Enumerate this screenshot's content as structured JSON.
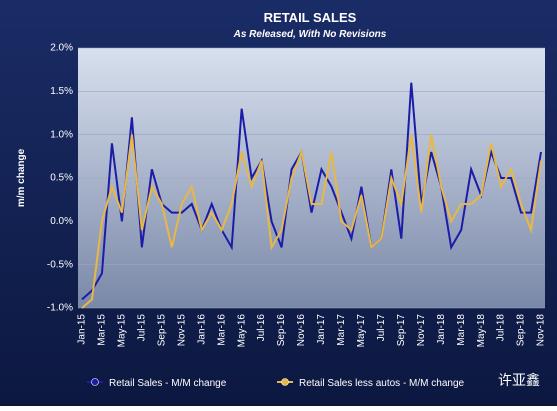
{
  "chart_data": {
    "type": "line",
    "title": "RETAIL SALES",
    "subtitle": "As Released, With No Revisions",
    "y_label": "m/m change",
    "categories": [
      "Jan-15",
      null,
      "Mar-15",
      null,
      "May-15",
      null,
      "Jul-15",
      null,
      "Sep-15",
      null,
      "Nov-15",
      null,
      "Jan-16",
      null,
      "Mar-16",
      null,
      "May-16",
      null,
      "Jul-16",
      null,
      "Sep-16",
      null,
      "Nov-16",
      null,
      "Jan-17",
      null,
      "Mar-17",
      null,
      "May-17",
      null,
      "Jul-17",
      null,
      "Sep-17",
      null,
      "Nov-17",
      null,
      "Jan-18",
      null,
      "Mar-18",
      null,
      "May-18",
      null,
      "Jul-18",
      null,
      "Sep-18",
      null,
      "Nov-18"
    ],
    "series": [
      {
        "name": "Retail Sales - M/M change",
        "color": "#1c1ca8",
        "values": [
          -0.9,
          -0.8,
          -0.6,
          0.9,
          0.0,
          1.2,
          -0.3,
          0.6,
          0.2,
          0.1,
          0.1,
          0.2,
          -0.1,
          0.2,
          -0.1,
          -0.3,
          1.3,
          0.5,
          0.7,
          0.0,
          -0.3,
          0.6,
          0.8,
          0.1,
          0.6,
          0.4,
          0.1,
          -0.2,
          0.4,
          -0.3,
          -0.2,
          0.6,
          -0.2,
          1.6,
          0.2,
          0.8,
          0.4,
          -0.3,
          -0.1,
          0.6,
          0.3,
          0.8,
          0.5,
          0.5,
          0.1,
          0.1,
          0.8
        ]
      },
      {
        "name": "Retail Sales less autos - M/M change",
        "color": "#e8b844",
        "values": [
          -1.0,
          -0.9,
          0.0,
          0.4,
          0.1,
          1.0,
          -0.1,
          0.4,
          0.2,
          -0.3,
          0.2,
          0.4,
          -0.1,
          0.1,
          -0.1,
          0.2,
          0.8,
          0.4,
          0.7,
          -0.3,
          -0.1,
          0.5,
          0.8,
          0.2,
          0.2,
          0.8,
          0.0,
          -0.1,
          0.3,
          -0.3,
          -0.2,
          0.5,
          0.2,
          1.0,
          0.1,
          1.0,
          0.4,
          0.0,
          0.2,
          0.2,
          0.3,
          0.9,
          0.4,
          0.6,
          0.2,
          -0.1,
          0.7
        ]
      }
    ],
    "ylim": [
      -1.0,
      2.0
    ],
    "yticks": [
      {
        "value": -1.0,
        "label": "-1.0%"
      },
      {
        "value": -0.5,
        "label": "-0.5%"
      },
      {
        "value": 0.0,
        "label": "0.0%"
      },
      {
        "value": 0.5,
        "label": "0.5%"
      },
      {
        "value": 1.0,
        "label": "1.0%"
      },
      {
        "value": 1.5,
        "label": "1.5%"
      },
      {
        "value": 2.0,
        "label": "2.0%"
      }
    ],
    "grid": true,
    "watermark": "许亚鑫"
  }
}
